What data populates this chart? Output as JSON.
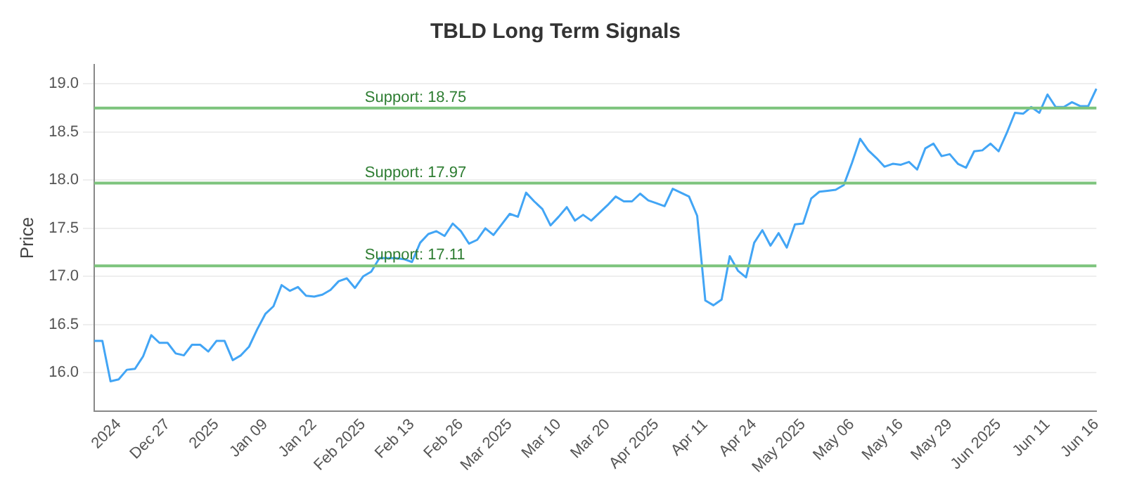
{
  "chart_data": {
    "type": "line",
    "title": "TBLD Long Term Signals",
    "ylabel": "Price",
    "categories": [
      null,
      null,
      null,
      "2024",
      null,
      null,
      null,
      null,
      null,
      "Dec 27",
      null,
      null,
      null,
      null,
      null,
      "2025",
      null,
      null,
      null,
      null,
      null,
      "Jan 09",
      null,
      null,
      null,
      null,
      null,
      "Jan 22",
      null,
      null,
      null,
      null,
      null,
      "Feb 2025",
      null,
      null,
      null,
      null,
      null,
      "Feb 13",
      null,
      null,
      null,
      null,
      null,
      "Feb 26",
      null,
      null,
      null,
      null,
      null,
      "Mar 2025",
      null,
      null,
      null,
      null,
      null,
      "Mar 10",
      null,
      null,
      null,
      null,
      null,
      "Mar 20",
      null,
      null,
      null,
      null,
      null,
      "Apr 2025",
      null,
      null,
      null,
      null,
      null,
      "Apr 11",
      null,
      null,
      null,
      null,
      null,
      "Apr 24",
      null,
      null,
      null,
      null,
      null,
      "May 2025",
      null,
      null,
      null,
      null,
      null,
      "May 06",
      null,
      null,
      null,
      null,
      null,
      "May 16",
      null,
      null,
      null,
      null,
      null,
      "May 29",
      null,
      null,
      null,
      null,
      null,
      "Jun 2025",
      null,
      null,
      null,
      null,
      null,
      "Jun 11",
      null,
      null,
      null,
      null,
      null,
      "Jun 16"
    ],
    "series": [
      {
        "color": "#42a5f5",
        "values": [
          16.33,
          16.33,
          15.91,
          15.93,
          16.03,
          16.04,
          16.17,
          16.39,
          16.31,
          16.31,
          16.2,
          16.18,
          16.29,
          16.29,
          16.22,
          16.33,
          16.33,
          16.13,
          16.18,
          16.27,
          16.45,
          16.61,
          16.69,
          16.91,
          16.85,
          16.89,
          16.8,
          16.79,
          16.81,
          16.86,
          16.95,
          16.98,
          16.88,
          17.0,
          17.05,
          17.19,
          17.19,
          17.19,
          17.18,
          17.15,
          17.35,
          17.44,
          17.47,
          17.42,
          17.55,
          17.47,
          17.34,
          17.38,
          17.5,
          17.43,
          17.54,
          17.65,
          17.62,
          17.87,
          17.78,
          17.7,
          17.53,
          17.62,
          17.72,
          17.58,
          17.64,
          17.58,
          17.66,
          17.74,
          17.83,
          17.78,
          17.78,
          17.86,
          17.79,
          17.76,
          17.73,
          17.91,
          17.87,
          17.83,
          17.63,
          16.75,
          16.7,
          16.76,
          17.21,
          17.06,
          16.99,
          17.35,
          17.48,
          17.32,
          17.45,
          17.3,
          17.54,
          17.55,
          17.81,
          17.88,
          17.89,
          17.9,
          17.95,
          18.18,
          18.43,
          18.31,
          18.23,
          18.14,
          18.17,
          18.16,
          18.19,
          18.11,
          18.33,
          18.38,
          18.25,
          18.27,
          18.17,
          18.13,
          18.3,
          18.31,
          18.38,
          18.3,
          18.49,
          18.7,
          18.69,
          18.76,
          18.7,
          18.89,
          18.76,
          18.76,
          18.81,
          18.77,
          18.77,
          18.95
        ]
      }
    ],
    "ylim": [
      15.6,
      19.2
    ],
    "yticks": [
      {
        "value": 16,
        "label": "16.0"
      },
      {
        "value": 16.5,
        "label": "16.5"
      },
      {
        "value": 17,
        "label": "17.0"
      },
      {
        "value": 17.5,
        "label": "17.5"
      },
      {
        "value": 18,
        "label": "18.0"
      },
      {
        "value": 18.5,
        "label": "18.5"
      },
      {
        "value": 19,
        "label": "19.0"
      }
    ],
    "grid": "y",
    "legend": false,
    "marker": "none",
    "line_style": "solid",
    "ref_lines": [
      {
        "axis": "y",
        "value": 18.75,
        "label": "Support: 18.75",
        "color": "#7dc47d"
      },
      {
        "axis": "y",
        "value": 17.97,
        "label": "Support: 17.97",
        "color": "#7dc47d"
      },
      {
        "axis": "y",
        "value": 17.11,
        "label": "Support: 17.11",
        "color": "#7dc47d"
      }
    ]
  }
}
